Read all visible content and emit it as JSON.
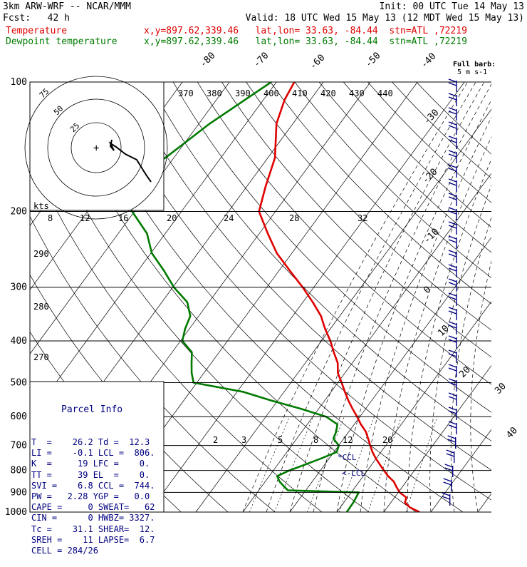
{
  "header": {
    "line1_left": "3km ARW-WRF -- NCAR/MMM",
    "line1_right": "Init: 00 UTC Tue 14 May 13",
    "line2_left": "Fcst:   42 h",
    "line2_right": "Valid: 18 UTC Wed 15 May 13 (12 MDT Wed 15 May 13)",
    "temp_label": "Temperature",
    "temp_info": "x,y=897.62,339.46   lat,lon= 33.63, -84.44  stn=ATL ,72219",
    "dew_label": "Dewpoint temperature",
    "dew_info": "x,y=897.62,339.46   lat,lon= 33.63, -84.44  stn=ATL ,72219"
  },
  "parcel_info": {
    "title": "Parcel Info",
    "rows": [
      "T  =    26.2 Td =  12.3",
      "LI =    -0.1 LCL =  806.",
      "K  =     19 LFC =    0.",
      "TT =     39 EL  =    0.",
      "SVI =    6.8 CCL =  744.",
      "PW =   2.28 YGP =   0.0",
      "CAPE =     0 SWEAT=   62",
      "CIN =      0 HWBZ= 3327.",
      "Tc =    31.1 SHEAR=  12.",
      "SREH =    11 LAPSE=  6.7",
      "CELL = 284/26"
    ]
  },
  "chart_data": {
    "type": "line",
    "subtype": "skew-T log-P diagram",
    "y_axis": {
      "scale": "log",
      "ylim": [
        1000,
        100
      ],
      "ticks": [
        100,
        200,
        300,
        400,
        500,
        600,
        700,
        800,
        900,
        1000
      ]
    },
    "isotherm_labels": [
      "-80",
      "-70",
      "-60",
      "-50",
      "-40",
      "-30",
      "-20",
      "-10",
      "0",
      "10",
      "20",
      "30",
      "40"
    ],
    "theta_labels": [
      "370",
      "380",
      "390",
      "400",
      "410",
      "420",
      "430",
      "440"
    ],
    "mixing_ratio_labels": [
      "2",
      "3",
      "5",
      "8",
      "12",
      "20"
    ],
    "theta_e_labels": [
      "290",
      "280",
      "270"
    ],
    "hodograph": {
      "ring_labels": [
        "75",
        "50",
        "25"
      ],
      "speed_unit": "kts",
      "speed_ticks": [
        "8",
        "12",
        "16",
        "20",
        "24",
        "28",
        "32"
      ]
    },
    "markers": [
      "*CCL",
      "<-LCL"
    ],
    "wind_barb_legend": [
      "Full barb:",
      "5 m s-1"
    ],
    "series": [
      {
        "name": "Temperature",
        "color": "#e00000",
        "points": [
          [
            1000,
            27.6
          ],
          [
            975,
            24.8
          ],
          [
            950,
            23.0
          ],
          [
            925,
            22.5
          ],
          [
            900,
            20.3
          ],
          [
            875,
            18.8
          ],
          [
            850,
            17.4
          ],
          [
            825,
            15.3
          ],
          [
            800,
            13.5
          ],
          [
            775,
            11.7
          ],
          [
            750,
            9.9
          ],
          [
            725,
            8.2
          ],
          [
            700,
            6.7
          ],
          [
            675,
            5.2
          ],
          [
            650,
            3.6
          ],
          [
            625,
            1.4
          ],
          [
            600,
            -0.6
          ],
          [
            575,
            -2.8
          ],
          [
            550,
            -5.0
          ],
          [
            525,
            -7.1
          ],
          [
            500,
            -9.2
          ],
          [
            475,
            -11.5
          ],
          [
            450,
            -13.1
          ],
          [
            425,
            -15.6
          ],
          [
            400,
            -18.1
          ],
          [
            375,
            -21.1
          ],
          [
            350,
            -24.0
          ],
          [
            325,
            -27.9
          ],
          [
            300,
            -32.4
          ],
          [
            275,
            -37.6
          ],
          [
            250,
            -43.2
          ],
          [
            225,
            -48.2
          ],
          [
            200,
            -53.5
          ],
          [
            175,
            -56.0
          ],
          [
            150,
            -58.5
          ],
          [
            125,
            -63.5
          ],
          [
            110,
            -65.5
          ],
          [
            100,
            -66.2
          ]
        ]
      },
      {
        "name": "Dewpoint temperature",
        "color": "#007a00",
        "points": [
          [
            1000,
            12.1
          ],
          [
            950,
            12.0
          ],
          [
            900,
            11.6
          ],
          [
            890,
            -3.8
          ],
          [
            875,
            -5.0
          ],
          [
            850,
            -6.9
          ],
          [
            825,
            -8.3
          ],
          [
            800,
            -6.6
          ],
          [
            775,
            -4.1
          ],
          [
            750,
            -1.7
          ],
          [
            725,
            0.6
          ],
          [
            700,
            0.0
          ],
          [
            675,
            -2.2
          ],
          [
            650,
            -2.7
          ],
          [
            625,
            -3.6
          ],
          [
            600,
            -7.2
          ],
          [
            575,
            -13.8
          ],
          [
            550,
            -21.5
          ],
          [
            525,
            -28.8
          ],
          [
            500,
            -40.7
          ],
          [
            475,
            -42.6
          ],
          [
            450,
            -44.2
          ],
          [
            425,
            -45.8
          ],
          [
            400,
            -49.6
          ],
          [
            375,
            -50.9
          ],
          [
            350,
            -51.8
          ],
          [
            325,
            -54.6
          ],
          [
            300,
            -59.8
          ],
          [
            275,
            -64.4
          ],
          [
            250,
            -69.8
          ],
          [
            225,
            -73.9
          ],
          [
            200,
            -80.5
          ],
          [
            175,
            -86.2
          ],
          [
            160,
            -84.7
          ],
          [
            150,
            -81.8
          ],
          [
            125,
            -77.7
          ],
          [
            100,
            -71.1
          ]
        ]
      }
    ],
    "hodograph_trace": [
      [
        -18,
        9
      ],
      [
        -19,
        -10
      ],
      [
        -21,
        4
      ],
      [
        -6,
        1
      ],
      [
        14,
        -18
      ],
      [
        26,
        -36
      ]
    ]
  }
}
